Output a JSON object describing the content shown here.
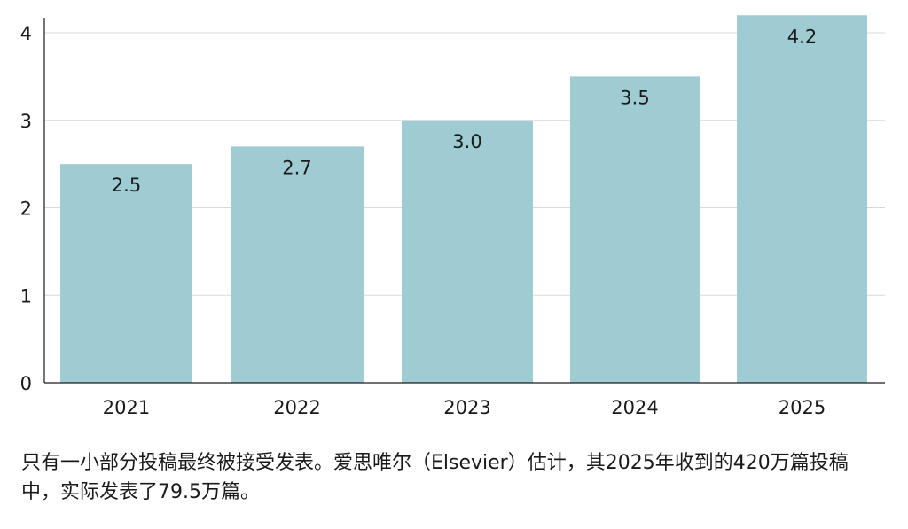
{
  "chart_data": {
    "type": "bar",
    "categories": [
      "2021",
      "2022",
      "2023",
      "2024",
      "2025"
    ],
    "values": [
      2.5,
      2.7,
      3.0,
      3.5,
      4.2
    ],
    "data_labels": [
      "2.5",
      "2.7",
      "3.0",
      "3.5",
      "4.2"
    ],
    "y_ticks": [
      "0",
      "1",
      "2",
      "3",
      "4"
    ],
    "ylim": [
      0,
      4.2
    ],
    "title": "",
    "xlabel": "",
    "ylabel": "",
    "grid": true,
    "bar_color": "#9fcbd3",
    "grid_color": "#d9d9d9",
    "axis_color": "#1a1a1a"
  },
  "caption": "只有一小部分投稿最终被接受发表。爱思唯尔（Elsevier）估计，其2025年收到的420万篇投稿中，实际发表了79.5万篇。"
}
